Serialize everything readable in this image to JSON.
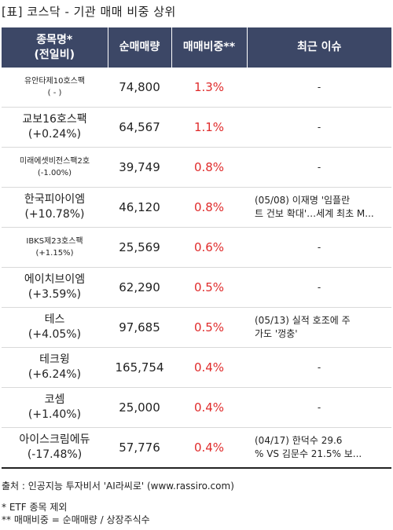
{
  "title": "[표] 코스닥 - 기관 매매 비중 상위",
  "headers": {
    "name": "종목명*",
    "name_sub": "(전일비)",
    "volume": "순매매량",
    "ratio": "매매비중**",
    "issue": "최근 이슈"
  },
  "rows": [
    {
      "name": "유안타제10호스팩",
      "change": "( - )",
      "volume": "74,800",
      "ratio": "1.3%",
      "issue": [
        "-"
      ],
      "small": true
    },
    {
      "name": "교보16호스팩",
      "change": "(+0.24%)",
      "volume": "64,567",
      "ratio": "1.1%",
      "issue": [
        "-"
      ],
      "small": false
    },
    {
      "name": "미래에셋비전스팩2호",
      "change": "(-1.00%)",
      "volume": "39,749",
      "ratio": "0.8%",
      "issue": [
        "-"
      ],
      "small": true
    },
    {
      "name": "한국피아이엠",
      "change": "(+10.78%)",
      "volume": "46,120",
      "ratio": "0.8%",
      "issue": [
        "(05/08) 이재명 '임플란",
        "트 건보 확대'…세계 최초 M..."
      ],
      "small": false
    },
    {
      "name": "IBKS제23호스팩",
      "change": "(+1.15%)",
      "volume": "25,569",
      "ratio": "0.6%",
      "issue": [
        "-"
      ],
      "small": true
    },
    {
      "name": "에이치브이엠",
      "change": "(+3.59%)",
      "volume": "62,290",
      "ratio": "0.5%",
      "issue": [
        "-"
      ],
      "small": false
    },
    {
      "name": "테스",
      "change": "(+4.05%)",
      "volume": "97,685",
      "ratio": "0.5%",
      "issue": [
        "(05/13) 실적 호조에 주",
        "가도 '껑충'"
      ],
      "small": false
    },
    {
      "name": "테크윙",
      "change": "(+6.24%)",
      "volume": "165,754",
      "ratio": "0.4%",
      "issue": [
        "-"
      ],
      "small": false
    },
    {
      "name": "코셈",
      "change": "(+1.40%)",
      "volume": "25,000",
      "ratio": "0.4%",
      "issue": [
        "-"
      ],
      "small": false
    },
    {
      "name": "아이스크림에듀",
      "change": "(-17.48%)",
      "volume": "57,776",
      "ratio": "0.4%",
      "issue": [
        "(04/17) 한덕수 29.6",
        "% VS 김문수 21.5% 보..."
      ],
      "small": false
    }
  ],
  "source": "출처 : 인공지능 투자비서 'AI라씨로' (www.rassiro.com)",
  "note1": "* ETF 종목 제외",
  "note2": "** 매매비중 = 순매매량 / 상장주식수",
  "colors": {
    "header_bg": "#3c4766",
    "ratio_red": "#e02b2b"
  }
}
